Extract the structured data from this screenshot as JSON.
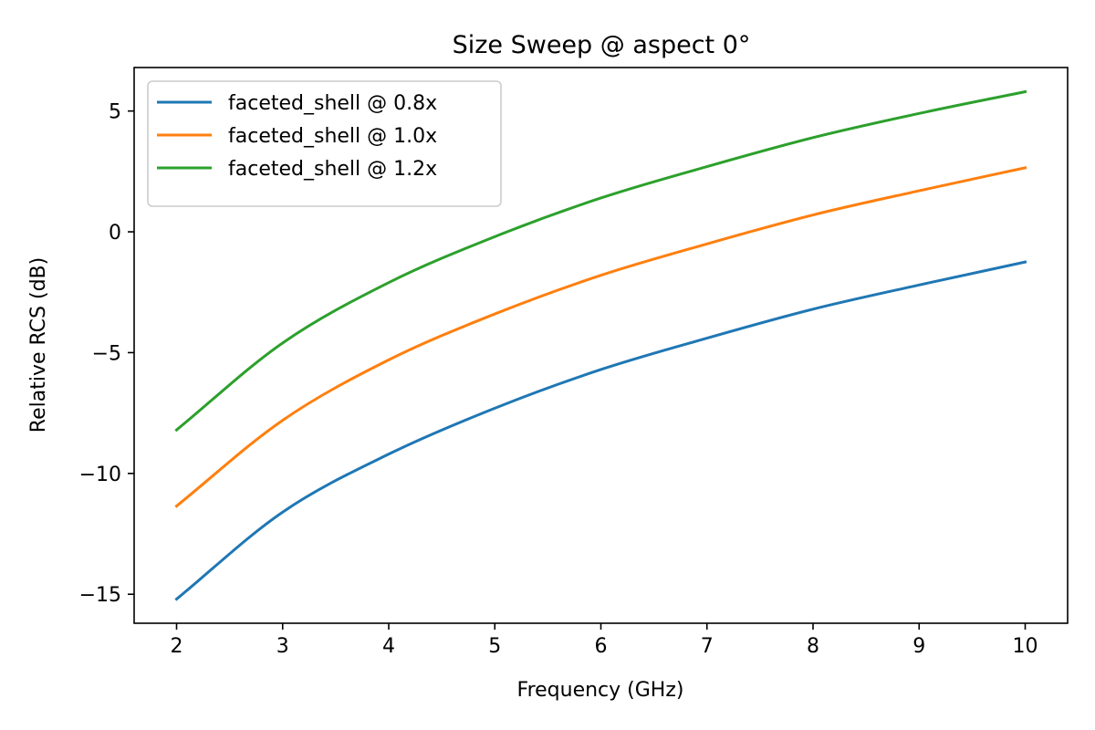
{
  "chart_data": {
    "type": "line",
    "title": "Size Sweep @ aspect 0°",
    "xlabel": "Frequency (GHz)",
    "ylabel": "Relative RCS (dB)",
    "xlim": [
      1.6,
      10.4
    ],
    "ylim": [
      -16.2,
      6.8
    ],
    "xticks": [
      2,
      3,
      4,
      5,
      6,
      7,
      8,
      9,
      10
    ],
    "yticks": [
      -15,
      -10,
      -5,
      0,
      5
    ],
    "ytick_labels": [
      "−15",
      "−10",
      "−5",
      "0",
      "5"
    ],
    "grid": false,
    "legend_position": "upper-left",
    "x": [
      2,
      3,
      4,
      5,
      6,
      7,
      8,
      9,
      10
    ],
    "series": [
      {
        "name": "faceted_shell @ 0.8x",
        "color": "#1f77b4",
        "values": [
          -15.2,
          -11.6,
          -9.2,
          -7.3,
          -5.7,
          -4.4,
          -3.2,
          -2.2,
          -1.25
        ]
      },
      {
        "name": "faceted_shell @ 1.0x",
        "color": "#ff7f0e",
        "values": [
          -11.35,
          -7.8,
          -5.3,
          -3.4,
          -1.8,
          -0.5,
          0.7,
          1.7,
          2.65
        ]
      },
      {
        "name": "faceted_shell @ 1.2x",
        "color": "#2ca02c",
        "values": [
          -8.2,
          -4.6,
          -2.1,
          -0.2,
          1.4,
          2.7,
          3.9,
          4.9,
          5.8
        ]
      }
    ]
  }
}
